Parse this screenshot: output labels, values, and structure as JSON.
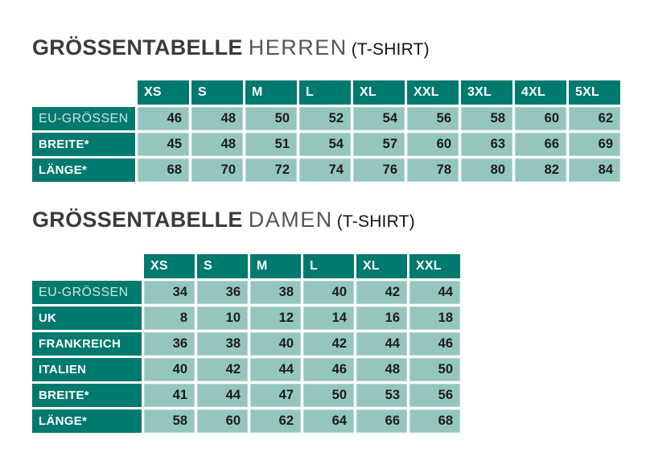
{
  "colors": {
    "header_teal": "#00796E",
    "cell_background": "#94C6BE",
    "value_text": "#1c1c1c",
    "title_bold": "#3b3b3b",
    "title_light": "#555555",
    "light_label_text": "#cfe4e1"
  },
  "tables": [
    {
      "id": "herren",
      "title": {
        "main": "GRÖSSENTABELLE",
        "sub": "HERREN",
        "suffix": "(T-SHIRT)"
      },
      "columns": [
        "XS",
        "S",
        "M",
        "L",
        "XL",
        "XXL",
        "3XL",
        "4XL",
        "5XL"
      ],
      "rows": [
        {
          "label": "EU-GRÖSSEN",
          "style": "light",
          "group_start": false,
          "values": [
            46,
            48,
            50,
            52,
            54,
            56,
            58,
            60,
            62
          ]
        },
        {
          "label": "BREITE*",
          "style": "bold",
          "group_start": true,
          "values": [
            45,
            48,
            51,
            54,
            57,
            60,
            63,
            66,
            69
          ]
        },
        {
          "label": "LÄNGE*",
          "style": "bold",
          "group_start": false,
          "values": [
            68,
            70,
            72,
            74,
            76,
            78,
            80,
            82,
            84
          ]
        }
      ]
    },
    {
      "id": "damen",
      "title": {
        "main": "GRÖSSENTABELLE",
        "sub": "DAMEN",
        "suffix": "(T-SHIRT)"
      },
      "columns": [
        "XS",
        "S",
        "M",
        "L",
        "XL",
        "XXL"
      ],
      "rows": [
        {
          "label": "EU-GRÖSSEN",
          "style": "light",
          "group_start": false,
          "values": [
            34,
            36,
            38,
            40,
            42,
            44
          ]
        },
        {
          "label": "UK",
          "style": "bold",
          "group_start": false,
          "values": [
            8,
            10,
            12,
            14,
            16,
            18
          ]
        },
        {
          "label": "FRANKREICH",
          "style": "bold",
          "group_start": false,
          "values": [
            36,
            38,
            40,
            42,
            44,
            46
          ]
        },
        {
          "label": "ITALIEN",
          "style": "bold",
          "group_start": false,
          "values": [
            40,
            42,
            44,
            46,
            48,
            50
          ]
        },
        {
          "label": "BREITE*",
          "style": "bold",
          "group_start": true,
          "values": [
            41,
            44,
            47,
            50,
            53,
            56
          ]
        },
        {
          "label": "LÄNGE*",
          "style": "bold",
          "group_start": false,
          "values": [
            58,
            60,
            62,
            64,
            66,
            68
          ]
        }
      ]
    }
  ]
}
